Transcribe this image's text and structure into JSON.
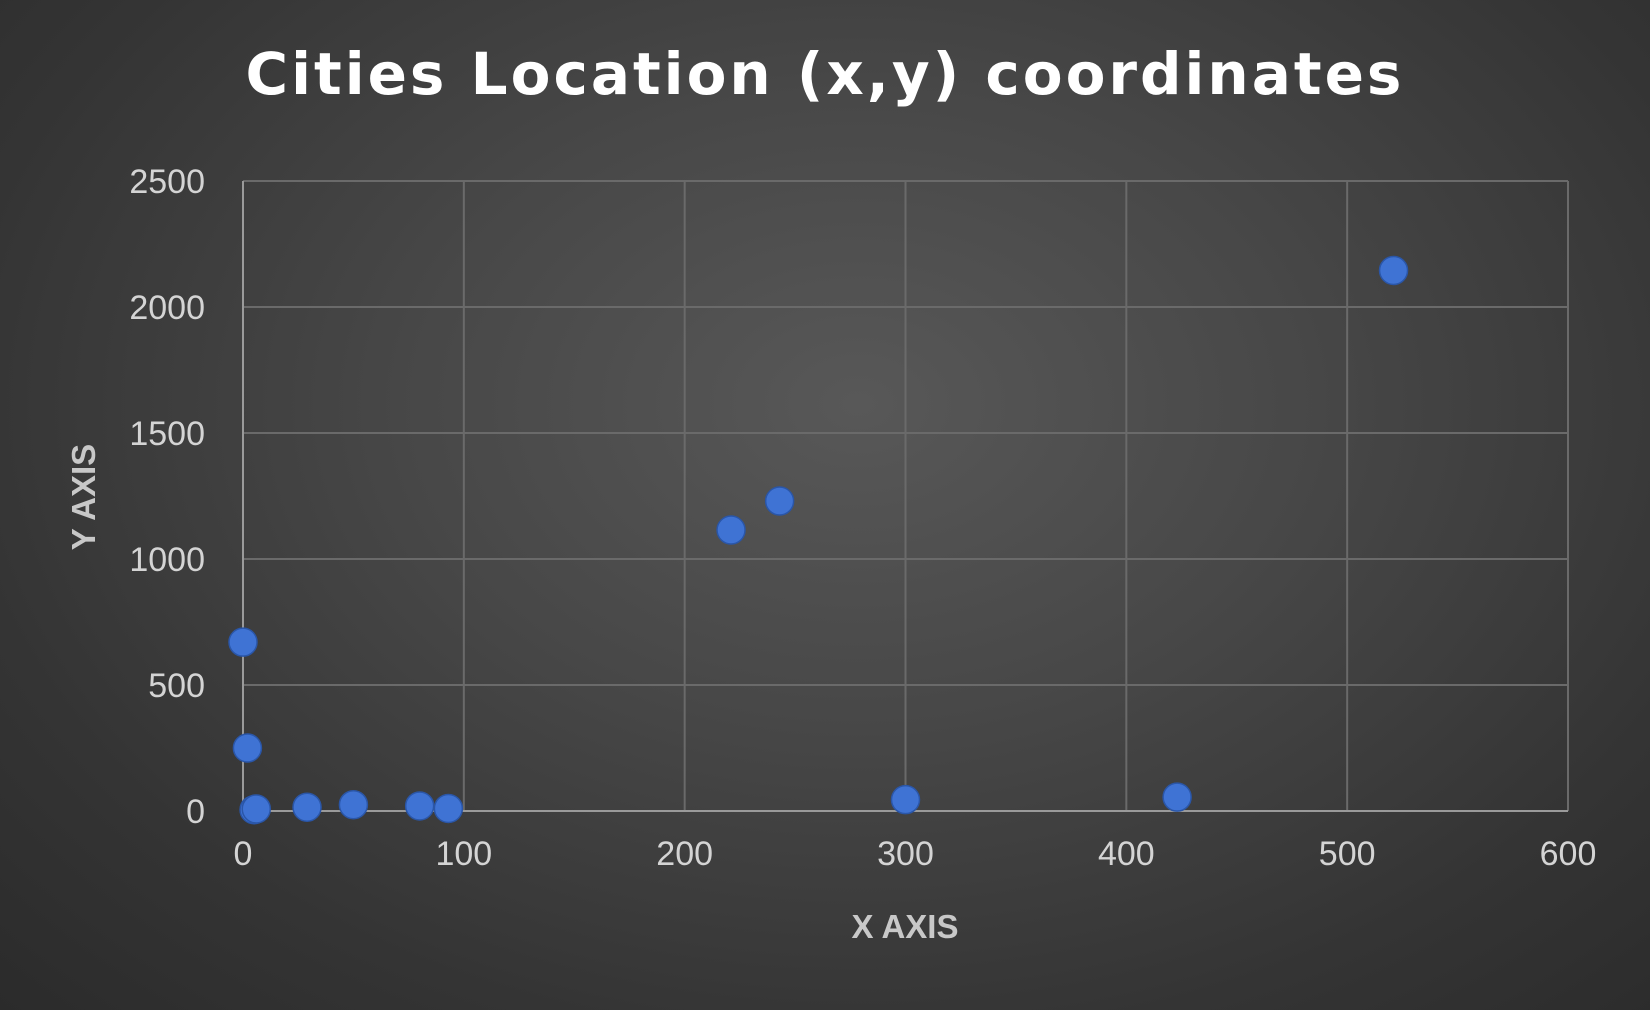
{
  "chart_data": {
    "type": "scatter",
    "title": "Cities Location (x,y) coordinates",
    "xlabel": "X AXIS",
    "ylabel": "Y AXIS",
    "xlim": [
      0,
      600
    ],
    "ylim": [
      0,
      2500
    ],
    "xticks": [
      "0",
      "100",
      "200",
      "300",
      "400",
      "500",
      "600"
    ],
    "yticks": [
      "0",
      "500",
      "1000",
      "1500",
      "2000",
      "2500"
    ],
    "grid": true,
    "legend": "none",
    "series": [
      {
        "color": "#3f73d4",
        "points": [
          {
            "x": 0,
            "y": 670
          },
          {
            "x": 2,
            "y": 250
          },
          {
            "x": 5,
            "y": 5
          },
          {
            "x": 6,
            "y": 8
          },
          {
            "x": 29,
            "y": 15
          },
          {
            "x": 50,
            "y": 25
          },
          {
            "x": 80,
            "y": 20
          },
          {
            "x": 93,
            "y": 10
          },
          {
            "x": 221,
            "y": 1115
          },
          {
            "x": 243,
            "y": 1230
          },
          {
            "x": 300,
            "y": 45
          },
          {
            "x": 423,
            "y": 55
          },
          {
            "x": 521,
            "y": 2145
          }
        ]
      }
    ]
  }
}
